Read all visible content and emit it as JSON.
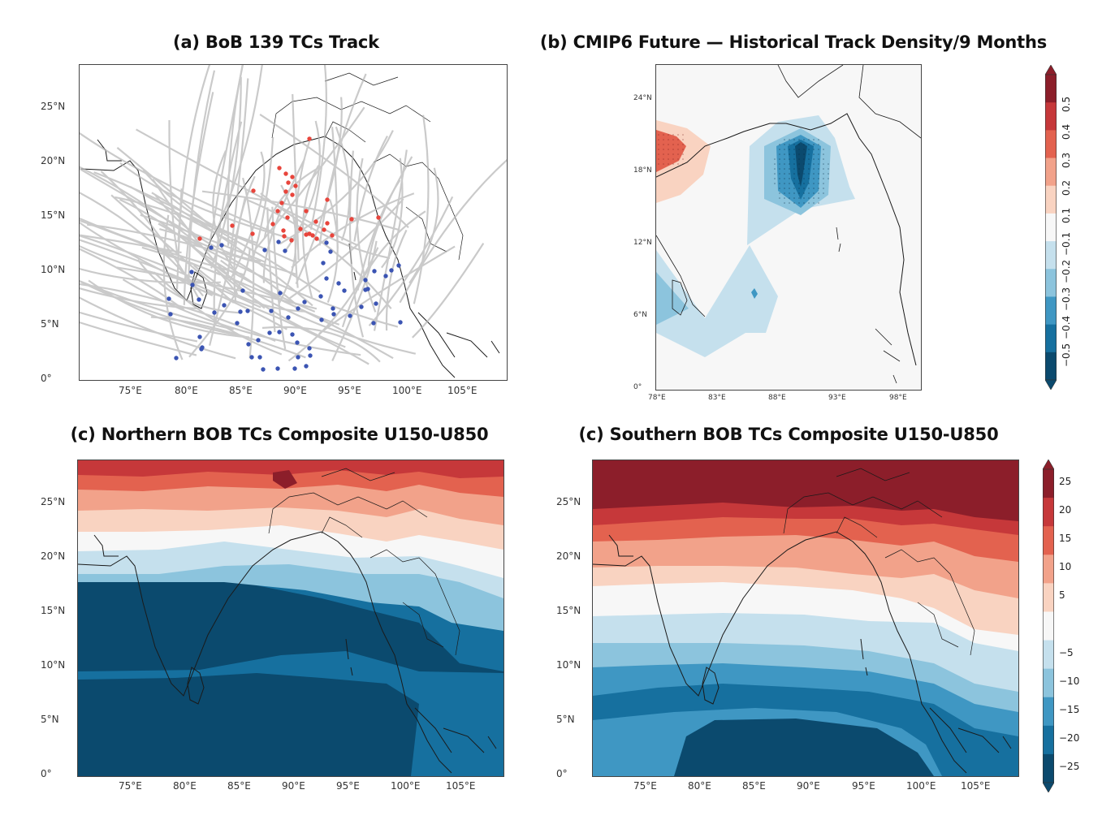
{
  "panels": [
    {
      "id": "a",
      "title": "(a) BoB 139 TCs Track",
      "lat_labels": [
        "25°N",
        "20°N",
        "15°N",
        "10°N",
        "5°N",
        "0°"
      ],
      "lon_labels": [
        "75°E",
        "80°E",
        "85°E",
        "90°E",
        "95°E",
        "100°E",
        "105°E"
      ],
      "colors": {
        "track": "#b5b5b5",
        "north_genesis": "#e8453c",
        "south_genesis": "#3b54b3"
      }
    },
    {
      "id": "b",
      "title": "(b) CMIP6 Future — Historical Track Density/9 Months",
      "lat_labels": [
        "24°N",
        "18°N",
        "12°N",
        "6°N",
        "0°"
      ],
      "lon_labels": [
        "78°E",
        "83°E",
        "88°E",
        "93°E",
        "98°E"
      ],
      "colorbar_ticks": [
        "0.5",
        "0.4",
        "0.3",
        "0.2",
        "0.1",
        "−0.1",
        "−0.2",
        "−0.3",
        "−0.4",
        "−0.5"
      ]
    },
    {
      "id": "c",
      "title": "(c) Northern BOB TCs Composite U150-U850",
      "lat_labels": [
        "25°N",
        "20°N",
        "15°N",
        "10°N",
        "5°N",
        "0°"
      ],
      "lon_labels": [
        "75°E",
        "80°E",
        "85°E",
        "90°E",
        "95°E",
        "100°E",
        "105°E"
      ]
    },
    {
      "id": "d",
      "title": "(c) Southern BOB TCs Composite U150-U850",
      "lat_labels": [
        "25°N",
        "20°N",
        "15°N",
        "10°N",
        "5°N",
        "0°"
      ],
      "lon_labels": [
        "75°E",
        "80°E",
        "85°E",
        "90°E",
        "95°E",
        "100°E",
        "105°E"
      ],
      "colorbar_ticks": [
        "25",
        "20",
        "15",
        "10",
        "5",
        "−5",
        "−10",
        "−15",
        "−20",
        "−25"
      ]
    }
  ],
  "palette": {
    "red4": "#8c1e2a",
    "red3": "#c6383a",
    "red2": "#e3624f",
    "red1": "#f2a28a",
    "red0": "#f9d3c1",
    "white": "#f7f7f7",
    "blue0": "#c5e0ed",
    "blue1": "#8cc4dd",
    "blue2": "#3f97c3",
    "blue3": "#16709f",
    "blue4": "#0b4a6e"
  }
}
